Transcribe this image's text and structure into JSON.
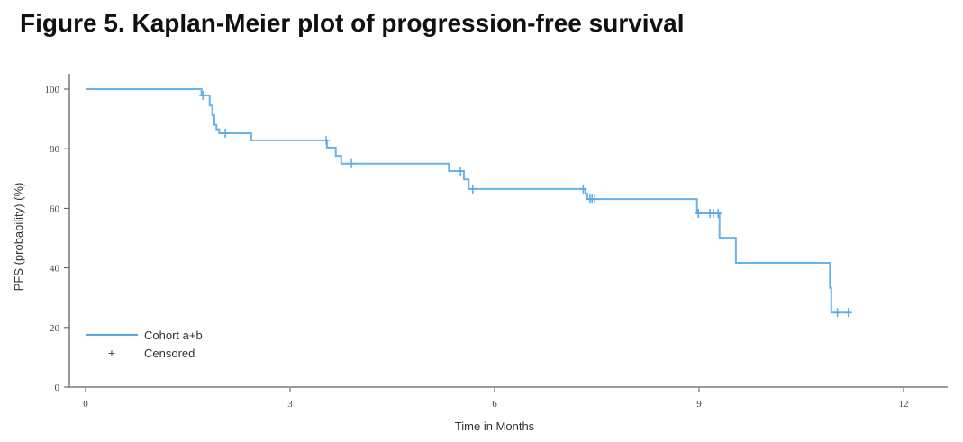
{
  "chart_data": {
    "type": "line",
    "title": "Figure 5. Kaplan-Meier plot of progression-free survival",
    "xlabel": "Time in Months",
    "ylabel": "PFS (probability) (%)",
    "xlim": [
      0,
      12
    ],
    "ylim": [
      0,
      100
    ],
    "xticks": [
      0,
      3,
      6,
      9,
      12
    ],
    "yticks": [
      0,
      20,
      40,
      60,
      80,
      100
    ],
    "grid": false,
    "legend_position": "bottom-left",
    "colors": {
      "line": "#5aaae8",
      "axis": "#9a9a9a"
    },
    "series": [
      {
        "name": "Cohort a+b",
        "step": true,
        "x": [
          0,
          1.7,
          1.82,
          1.86,
          1.89,
          1.92,
          1.96,
          2.43,
          3.54,
          3.67,
          3.75,
          5.33,
          5.55,
          5.62,
          7.33,
          7.36,
          8.97,
          9.3,
          9.54,
          10.92,
          10.94,
          11.22
        ],
        "y": [
          100,
          97.9,
          94.5,
          91.2,
          88.0,
          86.5,
          85.2,
          82.8,
          80.4,
          77.6,
          75.0,
          72.5,
          69.7,
          66.5,
          65.0,
          63.1,
          58.3,
          50.1,
          41.7,
          33.3,
          25.0,
          25.0
        ]
      }
    ],
    "censored": {
      "name": "Censored",
      "x": [
        1.72,
        2.05,
        3.53,
        3.9,
        5.5,
        5.68,
        7.3,
        7.4,
        7.43,
        7.47,
        8.99,
        9.16,
        9.21,
        9.28,
        11.03,
        11.19
      ],
      "y": [
        97.9,
        85.2,
        82.8,
        75.0,
        72.5,
        66.5,
        66.5,
        63.1,
        63.1,
        63.1,
        58.3,
        58.3,
        58.3,
        58.3,
        25.0,
        25.0
      ]
    }
  }
}
